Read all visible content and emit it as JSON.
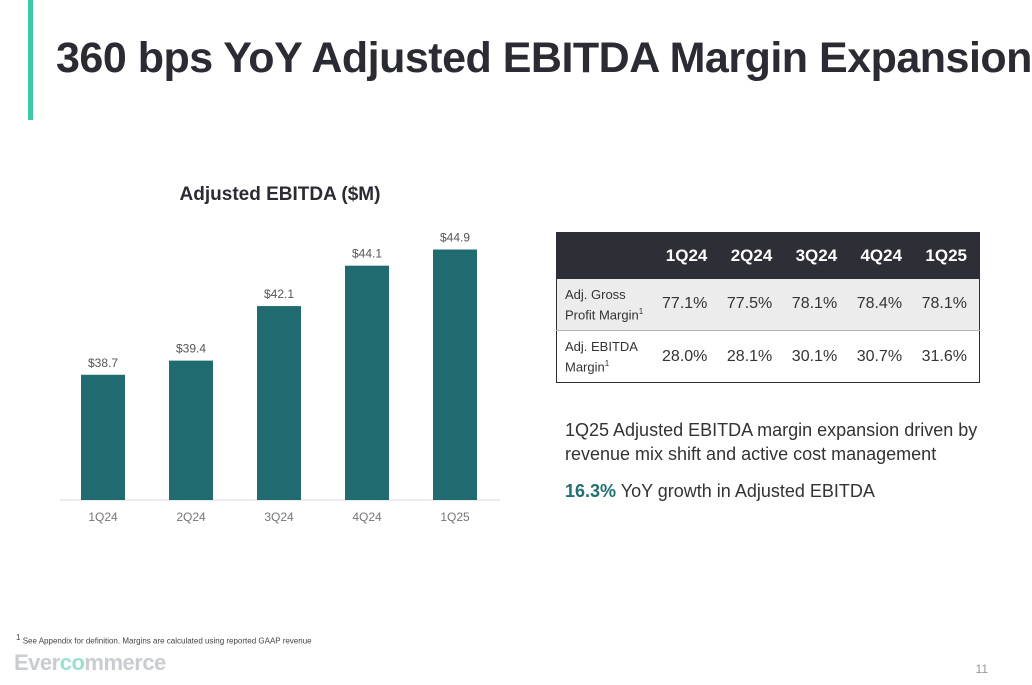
{
  "page": {
    "title": "360 bps YoY Adjusted EBITDA Margin Expansion",
    "page_number": "11",
    "footnote_marker": "1",
    "footnote": "See Appendix for definition. Margins are calculated using reported GAAP revenue",
    "logo": {
      "part1": "Ever",
      "part2": "co",
      "part3": "mmerce"
    }
  },
  "chart_data": {
    "type": "bar",
    "title": "Adjusted EBITDA ($M)",
    "categories": [
      "1Q24",
      "2Q24",
      "3Q24",
      "4Q24",
      "1Q25"
    ],
    "values": [
      38.7,
      39.4,
      42.1,
      44.1,
      44.9
    ],
    "data_labels": [
      "$38.7",
      "$39.4",
      "$42.1",
      "$44.1",
      "$44.9"
    ],
    "xlabel": "",
    "ylabel": "",
    "bar_color": "#1f6b6f",
    "grid": false
  },
  "table": {
    "headers": [
      "1Q24",
      "2Q24",
      "3Q24",
      "4Q24",
      "1Q25"
    ],
    "rows": [
      {
        "label_line1": "Adj. Gross",
        "label_line2": "Profit Margin",
        "sup": "1",
        "values": [
          "77.1%",
          "77.5%",
          "78.1%",
          "78.4%",
          "78.1%"
        ]
      },
      {
        "label_line1": "Adj. EBITDA",
        "label_line2": "Margin",
        "sup": "1",
        "values": [
          "28.0%",
          "28.1%",
          "30.1%",
          "30.7%",
          "31.6%"
        ]
      }
    ]
  },
  "commentary": {
    "text": "1Q25 Adjusted EBITDA margin expansion driven by revenue mix shift and active cost management",
    "growth_highlight": "16.3%",
    "growth_text": "YoY growth in Adjusted EBITDA"
  }
}
